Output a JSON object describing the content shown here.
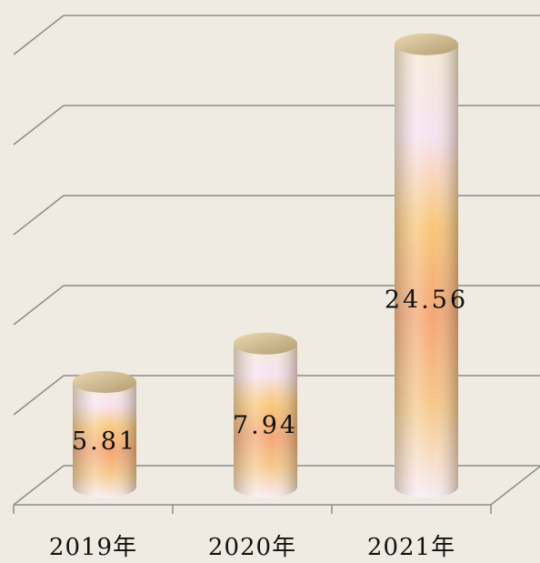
{
  "chart_data": {
    "type": "bar3d",
    "categories": [
      "2019年",
      "2020年",
      "2021年"
    ],
    "values": [
      5.81,
      7.94,
      24.56
    ],
    "ylim": [
      0,
      25
    ],
    "yticks": [
      0,
      5,
      10,
      15,
      20,
      25
    ],
    "grid": true
  }
}
